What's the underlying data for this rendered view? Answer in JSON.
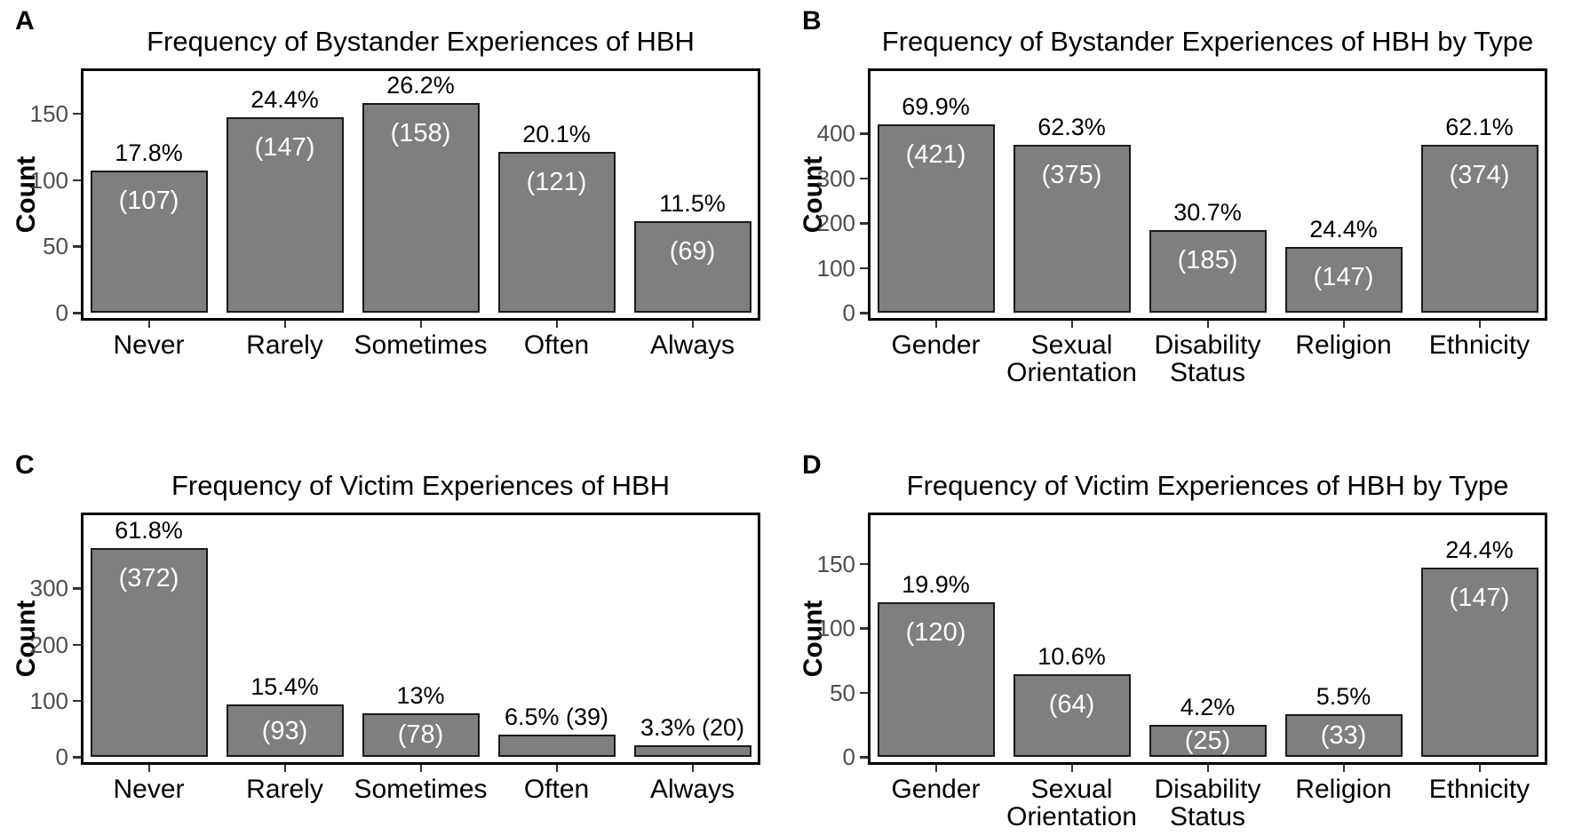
{
  "figure": {
    "background": "#ffffff",
    "bar_fill": "#7f7f7f",
    "bar_stroke": "#1a1a1a",
    "panel_border": "#000000",
    "axis_tick_color": "#333333",
    "ytick_text_color": "#4d4d4d",
    "inside_label_color": "#ffffff",
    "outside_label_color": "#000000"
  },
  "chart_data": [
    {
      "panel_label": "A",
      "type": "bar",
      "title": "Frequency of Bystander Experiences of HBH",
      "xlabel": "",
      "ylabel": "Count",
      "categories": [
        "Never",
        "Rarely",
        "Sometimes",
        "Often",
        "Always"
      ],
      "values": [
        107,
        147,
        158,
        121,
        69
      ],
      "labels": {
        "percent": [
          "17.8%",
          "24.4%",
          "26.2%",
          "20.1%",
          "11.5%"
        ],
        "count": [
          "(107)",
          "(147)",
          "(158)",
          "(121)",
          "(69)"
        ]
      },
      "count_inside": [
        true,
        true,
        true,
        true,
        true
      ],
      "yticks": [
        0,
        50,
        100,
        150
      ],
      "ylim": [
        0,
        184
      ],
      "grid": false,
      "legend": "none"
    },
    {
      "panel_label": "B",
      "type": "bar",
      "title": "Frequency of Bystander Experiences of HBH by Type",
      "xlabel": "",
      "ylabel": "Count",
      "categories": [
        "Gender",
        "Sexual\nOrientation",
        "Disability\nStatus",
        "Religion",
        "Ethnicity"
      ],
      "values": [
        421,
        375,
        185,
        147,
        374
      ],
      "labels": {
        "percent": [
          "69.9%",
          "62.3%",
          "30.7%",
          "24.4%",
          "62.1%"
        ],
        "count": [
          "(421)",
          "(375)",
          "(185)",
          "(147)",
          "(374)"
        ]
      },
      "count_inside": [
        true,
        true,
        true,
        true,
        true
      ],
      "yticks": [
        0,
        100,
        200,
        300,
        400
      ],
      "ylim": [
        0,
        545
      ],
      "grid": false,
      "legend": "none"
    },
    {
      "panel_label": "C",
      "type": "bar",
      "title": "Frequency of Victim Experiences of HBH",
      "xlabel": "",
      "ylabel": "Count",
      "categories": [
        "Never",
        "Rarely",
        "Sometimes",
        "Often",
        "Always"
      ],
      "values": [
        372,
        93,
        78,
        39,
        20
      ],
      "labels": {
        "percent": [
          "61.8%",
          "15.4%",
          "13%",
          "6.5%",
          "3.3%"
        ],
        "count": [
          "(372)",
          "(93)",
          "(78)",
          "(39)",
          "(20)"
        ]
      },
      "count_inside": [
        true,
        true,
        true,
        false,
        false
      ],
      "yticks": [
        0,
        100,
        200,
        300
      ],
      "ylim": [
        0,
        435
      ],
      "grid": false,
      "legend": "none"
    },
    {
      "panel_label": "D",
      "type": "bar",
      "title": "Frequency of Victim Experiences of HBH by Type",
      "xlabel": "",
      "ylabel": "Count",
      "categories": [
        "Gender",
        "Sexual\nOrientation",
        "Disability\nStatus",
        "Religion",
        "Ethnicity"
      ],
      "values": [
        120,
        64,
        25,
        33,
        147
      ],
      "labels": {
        "percent": [
          "19.9%",
          "10.6%",
          "4.2%",
          "5.5%",
          "24.4%"
        ],
        "count": [
          "(120)",
          "(64)",
          "(25)",
          "(33)",
          "(147)"
        ]
      },
      "count_inside": [
        true,
        true,
        true,
        true,
        true
      ],
      "yticks": [
        0,
        50,
        100,
        150
      ],
      "ylim": [
        0,
        190
      ],
      "grid": false,
      "legend": "none"
    }
  ]
}
